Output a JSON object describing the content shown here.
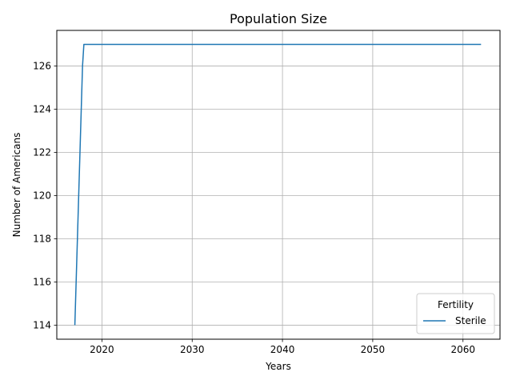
{
  "chart_data": {
    "type": "line",
    "title": "Population Size",
    "xlabel": "Years",
    "ylabel": "Number of Americans",
    "xlim": [
      2015,
      2064.1
    ],
    "ylim": [
      113.35,
      127.65
    ],
    "xticks": [
      2020,
      2030,
      2040,
      2050,
      2060
    ],
    "yticks": [
      114,
      116,
      118,
      120,
      122,
      124,
      126
    ],
    "grid": true,
    "legend": {
      "title": "Fertility",
      "placement": "lower-right"
    },
    "series": [
      {
        "name": "Sterile",
        "color": "#1f77b4",
        "x": [
          2017,
          2017.85,
          2018,
          2062
        ],
        "y": [
          114,
          126,
          127,
          127
        ]
      }
    ]
  }
}
